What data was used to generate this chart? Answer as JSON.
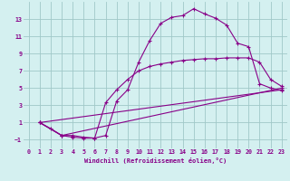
{
  "xlabel": "Windchill (Refroidissement éolien,°C)",
  "background_color": "#d4f0f0",
  "grid_color": "#a0c8c8",
  "line_color": "#880088",
  "xlim": [
    -0.5,
    23.5
  ],
  "ylim": [
    -2.0,
    15.0
  ],
  "xticks": [
    0,
    1,
    2,
    3,
    4,
    5,
    6,
    7,
    8,
    9,
    10,
    11,
    12,
    13,
    14,
    15,
    16,
    17,
    18,
    19,
    20,
    21,
    22,
    23
  ],
  "yticks": [
    -1,
    1,
    3,
    5,
    7,
    9,
    11,
    13
  ],
  "line1_x": [
    1,
    2,
    3,
    4,
    5,
    6,
    7,
    8,
    9,
    10,
    11,
    12,
    13,
    14,
    15,
    16,
    17,
    18,
    19,
    20,
    21,
    22,
    23
  ],
  "line1_y": [
    1.0,
    0.3,
    -0.5,
    -0.7,
    -0.8,
    -0.8,
    -0.5,
    3.5,
    4.8,
    8.0,
    10.5,
    12.5,
    13.2,
    13.4,
    14.2,
    13.6,
    13.1,
    12.3,
    10.2,
    9.8,
    5.5,
    5.0,
    4.7
  ],
  "line2_x": [
    1,
    3,
    4,
    5,
    6,
    7,
    8,
    9,
    10,
    11,
    12,
    13,
    14,
    15,
    16,
    17,
    18,
    19,
    20,
    21,
    22,
    23
  ],
  "line2_y": [
    1.0,
    -0.5,
    -0.5,
    -0.7,
    -0.8,
    3.3,
    4.8,
    6.0,
    7.0,
    7.5,
    7.8,
    8.0,
    8.2,
    8.3,
    8.4,
    8.4,
    8.5,
    8.5,
    8.5,
    8.0,
    6.0,
    5.2
  ],
  "line3_x": [
    1,
    3,
    23
  ],
  "line3_y": [
    1.0,
    -0.5,
    5.0
  ],
  "line4_x": [
    1,
    23
  ],
  "line4_y": [
    1.0,
    4.8
  ]
}
